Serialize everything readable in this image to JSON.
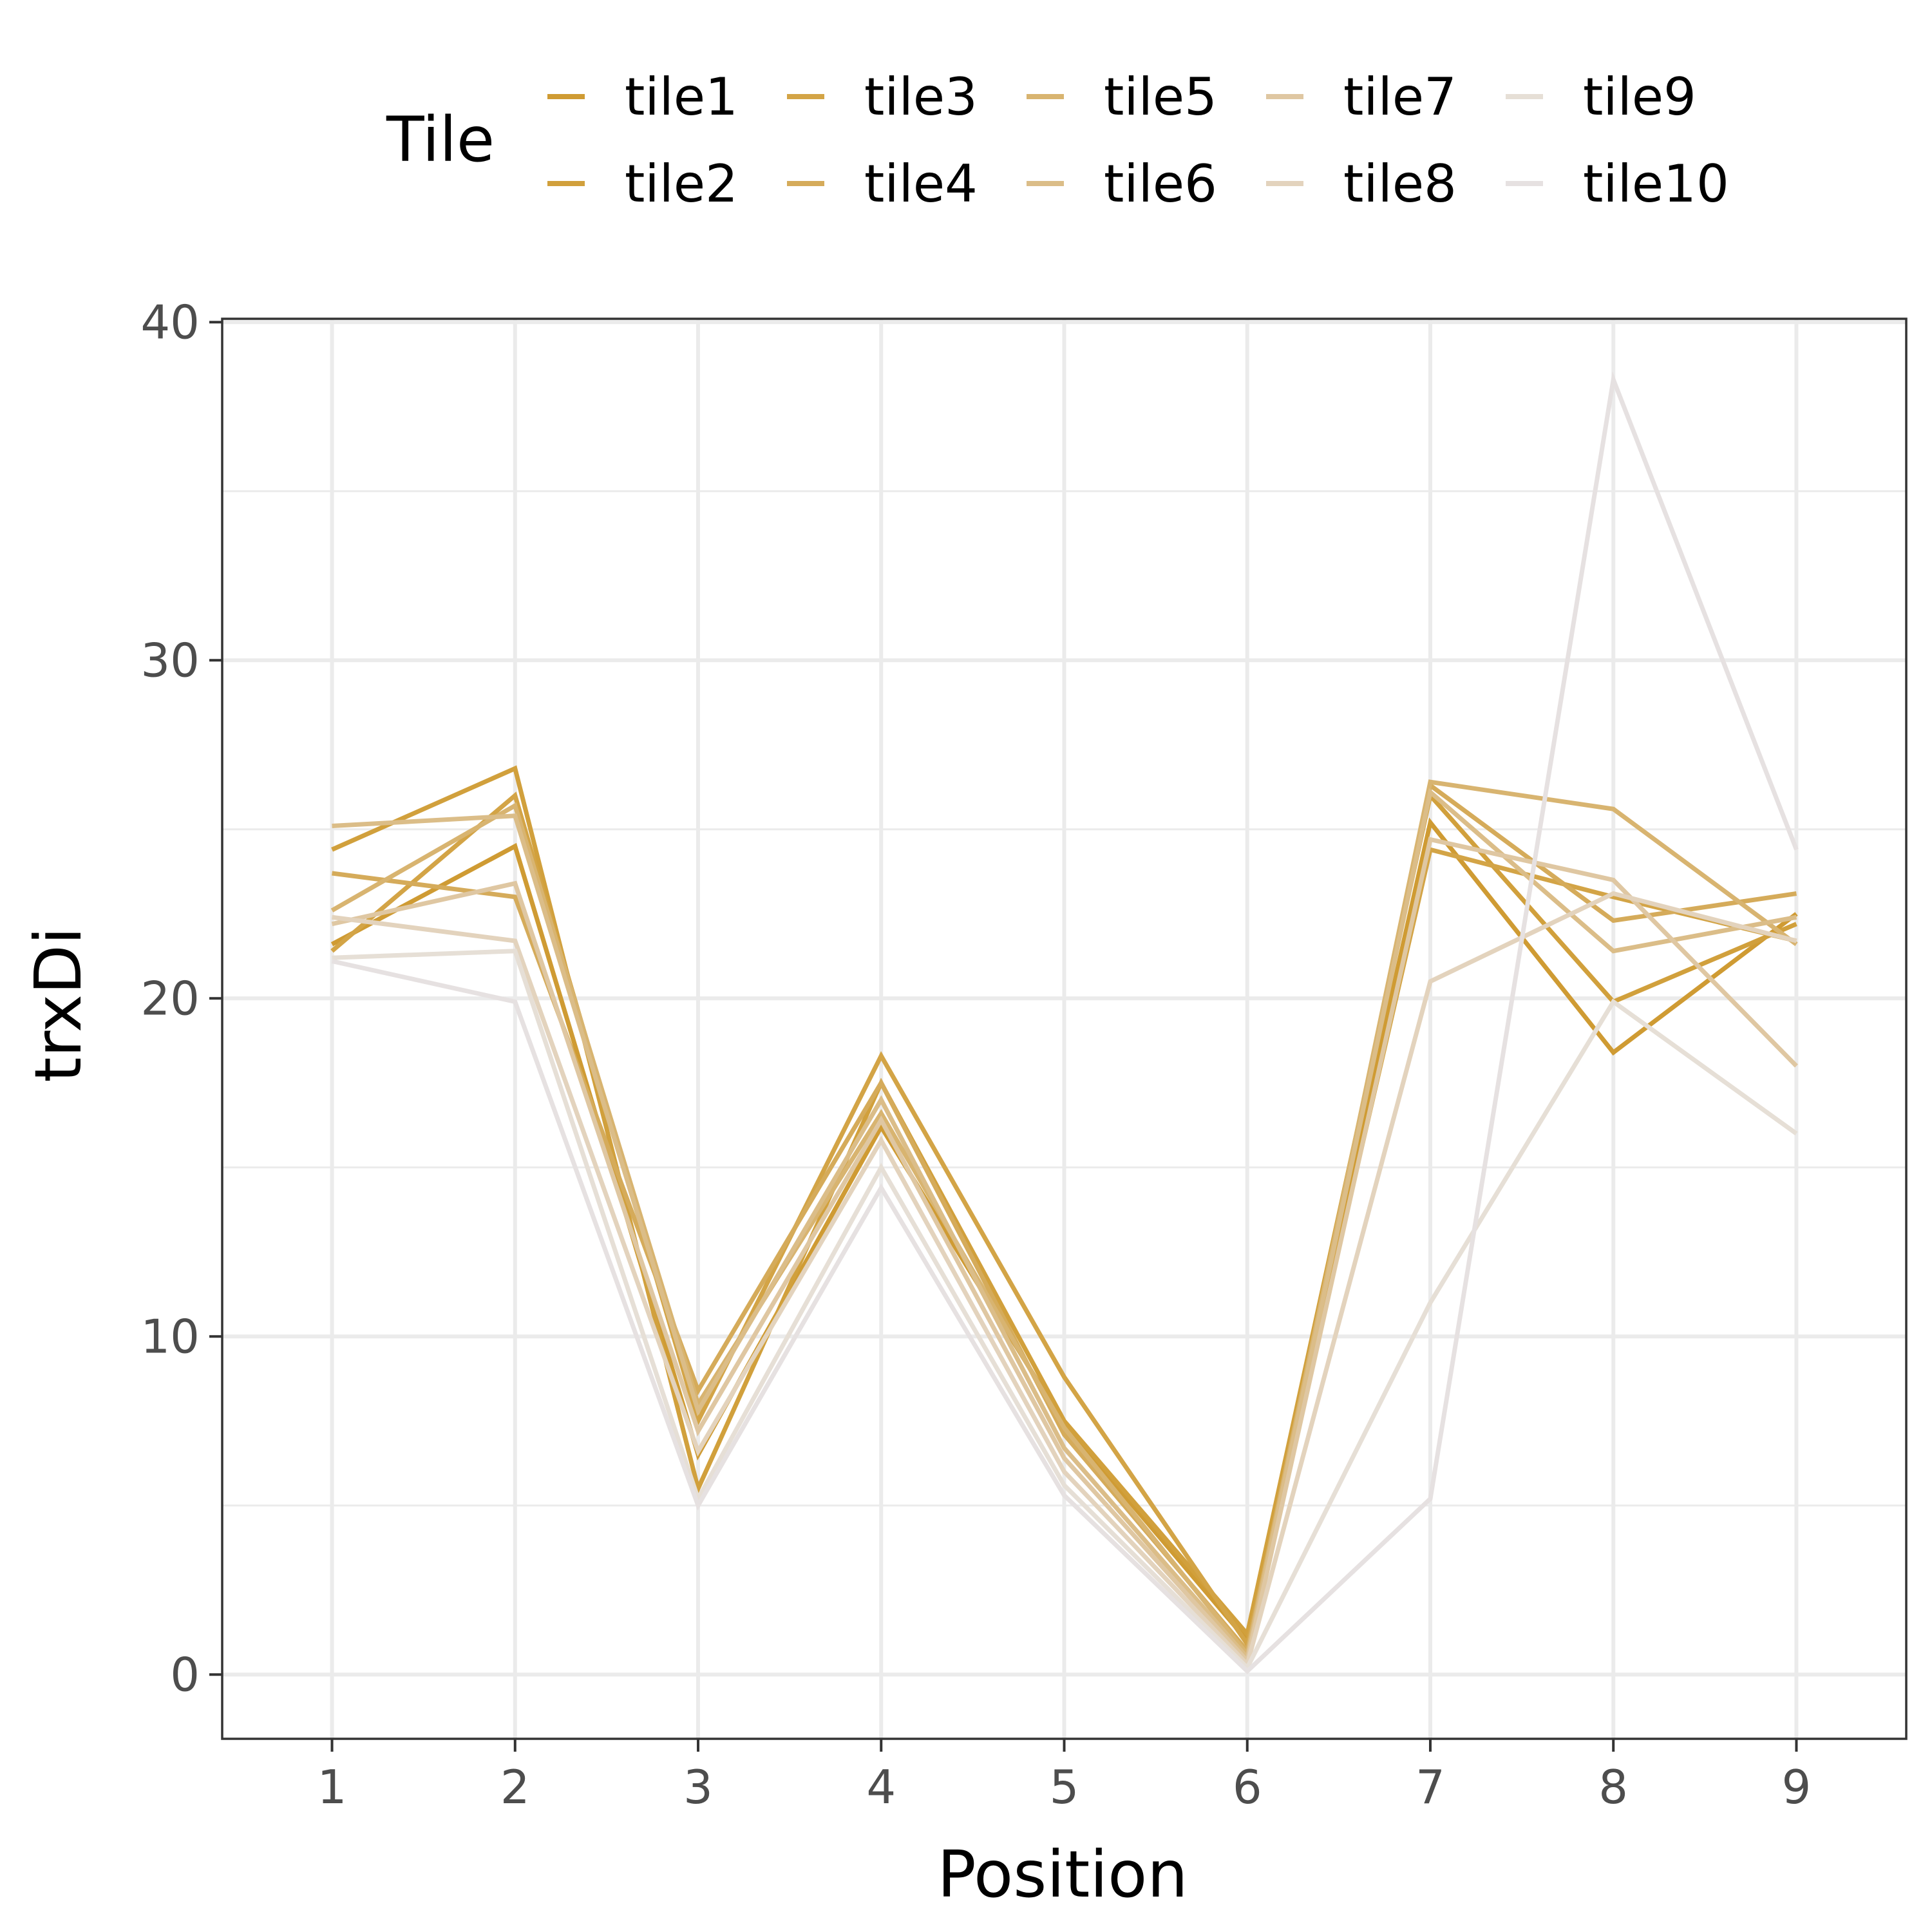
{
  "chart_data": {
    "type": "line",
    "xlabel": "Position",
    "ylabel": "trxDi",
    "legend_title": "Tile",
    "legend_position": "top",
    "grid": true,
    "xlim": [
      0.4,
      9.6
    ],
    "ylim": [
      -1.9,
      40.1
    ],
    "x": [
      1,
      2,
      3,
      4,
      5,
      6,
      7,
      8,
      9
    ],
    "x_ticks": [
      "1",
      "2",
      "3",
      "4",
      "5",
      "6",
      "7",
      "8",
      "9"
    ],
    "y_ticks": [
      0,
      10,
      20,
      30,
      40
    ],
    "series": [
      {
        "name": "tile1",
        "color": "#cf9b33",
        "values": [
          21.6,
          24.5,
          6.5,
          16.2,
          7.4,
          1.0,
          25.2,
          18.4,
          22.5
        ]
      },
      {
        "name": "tile2",
        "color": "#d1a03c",
        "values": [
          24.4,
          26.8,
          5.5,
          17.5,
          7.5,
          1.2,
          26.0,
          19.9,
          22.2
        ]
      },
      {
        "name": "tile3",
        "color": "#d3a446",
        "values": [
          21.4,
          26.0,
          7.5,
          18.3,
          8.8,
          0.9,
          24.4,
          23.0,
          21.7
        ]
      },
      {
        "name": "tile4",
        "color": "#d5ab5a",
        "values": [
          23.7,
          23.0,
          8.4,
          17.5,
          7.1,
          0.7,
          26.3,
          22.3,
          23.1
        ]
      },
      {
        "name": "tile5",
        "color": "#d8b470",
        "values": [
          22.6,
          25.7,
          8.0,
          16.6,
          7.3,
          0.6,
          26.4,
          25.6,
          21.6
        ]
      },
      {
        "name": "tile6",
        "color": "#dbbd88",
        "values": [
          25.1,
          25.4,
          7.8,
          17.0,
          6.7,
          0.5,
          26.1,
          21.4,
          22.4
        ]
      },
      {
        "name": "tile7",
        "color": "#dfc7a2",
        "values": [
          22.2,
          23.4,
          7.2,
          16.4,
          6.4,
          0.4,
          24.7,
          23.5,
          18.0
        ]
      },
      {
        "name": "tile8",
        "color": "#e3d3bd",
        "values": [
          22.4,
          21.7,
          6.6,
          15.8,
          6.0,
          0.3,
          20.5,
          23.1,
          21.7
        ]
      },
      {
        "name": "tile9",
        "color": "#e6dfd6",
        "values": [
          21.2,
          21.4,
          5.2,
          15.0,
          5.6,
          0.2,
          11.0,
          19.9,
          16.0
        ]
      },
      {
        "name": "tile10",
        "color": "#e6e1e1",
        "values": [
          21.1,
          19.9,
          5.0,
          14.4,
          5.3,
          0.1,
          5.2,
          38.3,
          24.4
        ]
      }
    ]
  }
}
